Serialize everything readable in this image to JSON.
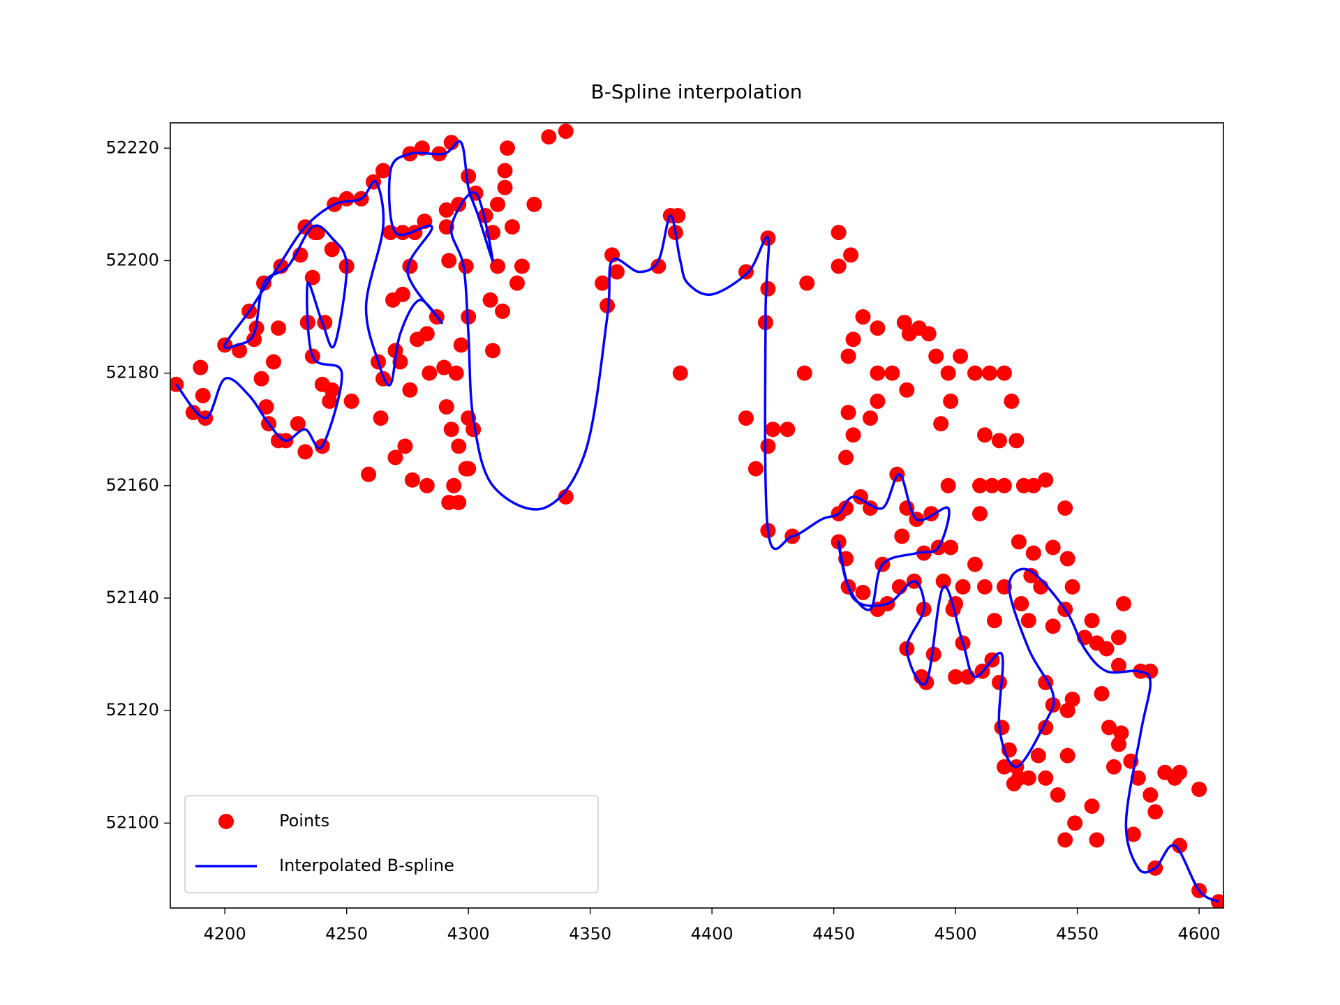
{
  "chart_data": {
    "type": "scatter_line",
    "title": "B-Spline interpolation",
    "xlim": [
      4177.6,
      4610
    ],
    "ylim": [
      52084.9,
      52224.5
    ],
    "xticks": [
      4200,
      4250,
      4300,
      4350,
      4400,
      4450,
      4500,
      4550,
      4600
    ],
    "yticks": [
      52100,
      52120,
      52140,
      52160,
      52180,
      52200,
      52220
    ],
    "legend": "lower left",
    "series": [
      {
        "name": "Points",
        "kind": "scatter",
        "color": "#ff0000",
        "x": [
          4180,
          4187,
          4192,
          4191,
          4190,
          4200,
          4206,
          4210,
          4213,
          4216,
          4222,
          4220,
          4215,
          4218,
          4222,
          4225,
          4230,
          4233,
          4240,
          4243,
          4240,
          4236,
          4234,
          4236,
          4238,
          4244,
          4250,
          4245,
          4250,
          4256,
          4261,
          4265,
          4268,
          4273,
          4278,
          4282,
          4276,
          4273,
          4269,
          4263,
          4265,
          4270,
          4272,
          4276,
          4279,
          4283,
          4287,
          4284,
          4290,
          4295,
          4291,
          4293,
          4299,
          4296,
          4294,
          4296,
          4292,
          4283,
          4277,
          4274,
          4270,
          4264,
          4259,
          4252,
          4244,
          4241,
          4234,
          4231,
          4223,
          4212,
          4217,
          4233,
          4237,
          4276,
          4281,
          4288,
          4293,
          4300,
          4303,
          4296,
          4291,
          4291,
          4292,
          4299,
          4300,
          4297,
          4300,
          4302,
          4300,
          4310,
          4309,
          4314,
          4312,
          4310,
          4307,
          4312,
          4315,
          4316,
          4318,
          4322,
          4320,
          4315,
          4327,
          4333,
          4340,
          4340,
          4355,
          4357,
          4359,
          4361,
          4378,
          4383,
          4386,
          4385,
          4387,
          4414,
          4418,
          4423,
          4425,
          4431,
          4438,
          4439,
          4414,
          4423,
          4423,
          4422,
          4423,
          4433,
          4452,
          4452,
          4457,
          4462,
          4468,
          4456,
          4458,
          4455,
          4456,
          4458,
          4452,
          4455,
          4461,
          4465,
          4476,
          4480,
          4484,
          4478,
          4490,
          4497,
          4493,
          4487,
          4452,
          4455,
          4456,
          4462,
          4468,
          4472,
          4470,
          4477,
          4483,
          4487,
          4480,
          4486,
          4488,
          4491,
          4495,
          4499,
          4503,
          4500,
          4505,
          4511,
          4515,
          4518,
          4519,
          4522,
          4525,
          4526,
          4534,
          4537,
          4540,
          4537,
          4530,
          4527,
          4520,
          4516,
          4512,
          4508,
          4503,
          4498,
          4500,
          4510,
          4510,
          4515,
          4520,
          4528,
          4532,
          4537,
          4545,
          4546,
          4548,
          4545,
          4540,
          4535,
          4531,
          4526,
          4532,
          4540,
          4553,
          4558,
          4562,
          4567,
          4576,
          4580,
          4567,
          4569,
          4556,
          4548,
          4546,
          4546,
          4542,
          4537,
          4530,
          4524,
          4520,
          4560,
          4563,
          4567,
          4565,
          4558,
          4556,
          4549,
          4545,
          4568,
          4572,
          4575,
          4580,
          4582,
          4586,
          4590,
          4592,
          4600,
          4592,
          4582,
          4573,
          4600,
          4608,
          4497,
          4502,
          4508,
          4514,
          4520,
          4523,
          4525,
          4518,
          4512,
          4494,
          4498,
          4492,
          4489,
          4485,
          4479,
          4474,
          4468,
          4465,
          4468,
          4480,
          4481
        ],
        "y": [
          52178,
          52173,
          52172,
          52176,
          52181,
          52185,
          52184,
          52191,
          52188,
          52196,
          52188,
          52182,
          52179,
          52171,
          52168,
          52168,
          52171,
          52166,
          52167,
          52175,
          52178,
          52183,
          52189,
          52197,
          52205,
          52202,
          52199,
          52210,
          52211,
          52211,
          52214,
          52216,
          52205,
          52205,
          52205,
          52207,
          52199,
          52194,
          52193,
          52182,
          52179,
          52184,
          52182,
          52177,
          52186,
          52187,
          52190,
          52180,
          52181,
          52180,
          52174,
          52170,
          52163,
          52167,
          52160,
          52157,
          52157,
          52160,
          52161,
          52167,
          52165,
          52172,
          52162,
          52175,
          52177,
          52189,
          52189,
          52201,
          52199,
          52186,
          52174,
          52206,
          52205,
          52219,
          52220,
          52219,
          52221,
          52215,
          52212,
          52210,
          52209,
          52206,
          52200,
          52199,
          52190,
          52185,
          52172,
          52170,
          52163,
          52184,
          52193,
          52191,
          52199,
          52205,
          52208,
          52210,
          52216,
          52220,
          52206,
          52199,
          52196,
          52213,
          52210,
          52222,
          52223,
          52158,
          52196,
          52192,
          52201,
          52198,
          52199,
          52208,
          52208,
          52205,
          52180,
          52172,
          52163,
          52167,
          52170,
          52170,
          52180,
          52196,
          52198,
          52204,
          52195,
          52189,
          52152,
          52151,
          52205,
          52199,
          52201,
          52190,
          52188,
          52173,
          52169,
          52165,
          52183,
          52186,
          52155,
          52156,
          52158,
          52156,
          52162,
          52156,
          52154,
          52151,
          52155,
          52160,
          52149,
          52148,
          52150,
          52147,
          52142,
          52141,
          52138,
          52139,
          52146,
          52142,
          52143,
          52138,
          52131,
          52126,
          52125,
          52130,
          52143,
          52138,
          52132,
          52126,
          52126,
          52127,
          52129,
          52125,
          52117,
          52113,
          52110,
          52108,
          52112,
          52117,
          52121,
          52125,
          52136,
          52139,
          52142,
          52136,
          52142,
          52146,
          52142,
          52149,
          52139,
          52155,
          52160,
          52160,
          52160,
          52160,
          52160,
          52161,
          52156,
          52147,
          52142,
          52138,
          52135,
          52142,
          52144,
          52150,
          52148,
          52149,
          52133,
          52132,
          52131,
          52128,
          52127,
          52127,
          52133,
          52139,
          52136,
          52122,
          52120,
          52112,
          52105,
          52108,
          52108,
          52107,
          52110,
          52123,
          52117,
          52114,
          52110,
          52097,
          52103,
          52100,
          52097,
          52116,
          52111,
          52108,
          52105,
          52102,
          52109,
          52108,
          52109,
          52106,
          52096,
          52092,
          52098,
          52088,
          52086,
          52180,
          52183,
          52180,
          52180,
          52180,
          52175,
          52168,
          52168,
          52169,
          52171,
          52175,
          52183,
          52187,
          52188,
          52189,
          52180,
          52175,
          52172,
          52180,
          52177,
          52187
        ]
      },
      {
        "name": "Interpolated B-spline",
        "kind": "line",
        "color": "#0000ff",
        "x": [
          4180,
          4192,
          4200,
          4210,
          4218,
          4225,
          4233,
          4240,
          4248,
          4236,
          4234,
          4240,
          4245,
          4250,
          4244,
          4236,
          4226,
          4216,
          4212,
          4205,
          4200,
          4210,
          4222,
          4233,
          4245,
          4256,
          4262,
          4265,
          4258,
          4263,
          4268,
          4272,
          4280,
          4289,
          4275,
          4285,
          4270,
          4268,
          4276,
          4290,
          4297,
          4300,
          4304,
          4310,
          4303,
          4293,
          4298,
          4300,
          4302,
          4310,
          4331,
          4348,
          4357,
          4359,
          4370,
          4378,
          4383,
          4387,
          4390,
          4400,
          4415,
          4423,
          4422,
          4423,
          4433,
          4445,
          4452,
          4458,
          4470,
          4477,
          4484,
          4497,
          4493,
          4484,
          4470,
          4465,
          4456,
          4452,
          4458,
          4472,
          4483,
          4487,
          4480,
          4488,
          4495,
          4503,
          4508,
          4519,
          4518,
          4525,
          4537,
          4540,
          4530,
          4522,
          4530,
          4545,
          4553,
          4562,
          4575,
          4580,
          4576,
          4570,
          4575,
          4582,
          4590,
          4600,
          4608
        ],
        "y": [
          52178,
          52172,
          52179,
          52176,
          52171,
          52168,
          52170,
          52167,
          52180,
          52183,
          52196,
          52189,
          52185,
          52199,
          52204,
          52206,
          52199,
          52196,
          52187,
          52185,
          52185,
          52191,
          52199,
          52206,
          52210,
          52211,
          52214,
          52206,
          52192,
          52182,
          52178,
          52187,
          52193,
          52189,
          52198,
          52206,
          52205,
          52216,
          52219,
          52219,
          52221,
          52213,
          52208,
          52200,
          52212,
          52206,
          52199,
          52187,
          52172,
          52160,
          52156,
          52166,
          52190,
          52200,
          52198,
          52200,
          52208,
          52200,
          52196,
          52194,
          52198,
          52204,
          52190,
          52152,
          52151,
          52154,
          52155,
          52158,
          52156,
          52162,
          52154,
          52156,
          52149,
          52148,
          52146,
          52138,
          52142,
          52150,
          52140,
          52139,
          52143,
          52138,
          52131,
          52125,
          52142,
          52132,
          52126,
          52130,
          52117,
          52110,
          52118,
          52123,
          52131,
          52142,
          52145,
          52138,
          52131,
          52127,
          52127,
          52125,
          52116,
          52100,
          52092,
          52092,
          52096,
          52088,
          52086
        ]
      }
    ]
  }
}
